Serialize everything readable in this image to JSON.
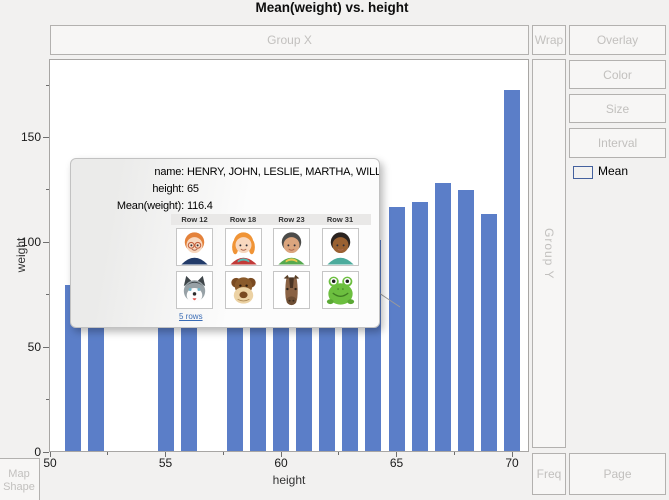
{
  "window": {
    "title": "Mean(weight) vs. height"
  },
  "drop_zones": {
    "group_x": "Group X",
    "wrap": "Wrap",
    "overlay": "Overlay",
    "color": "Color",
    "size": "Size",
    "interval": "Interval",
    "group_y": "Group Y",
    "map_shape_line1": "Map",
    "map_shape_line2": "Shape",
    "freq": "Freq",
    "page": "Page"
  },
  "legend": {
    "label": "Mean",
    "color": "#5b7ec8"
  },
  "chart_data": {
    "type": "bar",
    "title": "Mean(weight) vs. height",
    "xlabel": "height",
    "ylabel": "weight",
    "x": [
      51,
      52,
      55,
      56,
      58,
      59,
      60,
      61,
      62,
      63,
      64,
      65,
      66,
      67,
      68,
      69,
      70
    ],
    "values": [
      79,
      64,
      74,
      67,
      95,
      87,
      103.7,
      109.8,
      97.6,
      94,
      100.5,
      116.4,
      118.7,
      128,
      124.7,
      113,
      172
    ],
    "bar_color": "#5b7ec8",
    "xlim": [
      49.95,
      70.75
    ],
    "ylim": [
      0,
      187
    ],
    "xticks": [
      50,
      55,
      60,
      65,
      70
    ],
    "xticks_minor": [
      52.5,
      57.5,
      62.5,
      67.5
    ],
    "yticks": [
      0,
      50,
      100,
      150
    ],
    "yticks_minor": [
      25,
      75,
      125,
      175
    ],
    "grid": false,
    "legend_position": "right"
  },
  "tooltip": {
    "fields": [
      {
        "label": "name:",
        "value": "HENRY, JOHN, LESLIE, MARTHA, WILLIAM"
      },
      {
        "label": "height:",
        "value": "65"
      },
      {
        "label": "Mean(weight):",
        "value": "116.4"
      }
    ],
    "thumbnails": [
      {
        "header": "Row 12",
        "top_icon": "boy-glasses-avatar",
        "bottom_icon": "husky-dog-avatar"
      },
      {
        "header": "Row 18",
        "top_icon": "girl-orange-hair-avatar",
        "bottom_icon": "monkey-avatar"
      },
      {
        "header": "Row 23",
        "top_icon": "boy-green-shirt-avatar",
        "bottom_icon": "horse-avatar"
      },
      {
        "header": "Row 31",
        "top_icon": "boy-teal-shirt-avatar",
        "bottom_icon": "frog-avatar"
      }
    ],
    "link": "5 rows"
  }
}
